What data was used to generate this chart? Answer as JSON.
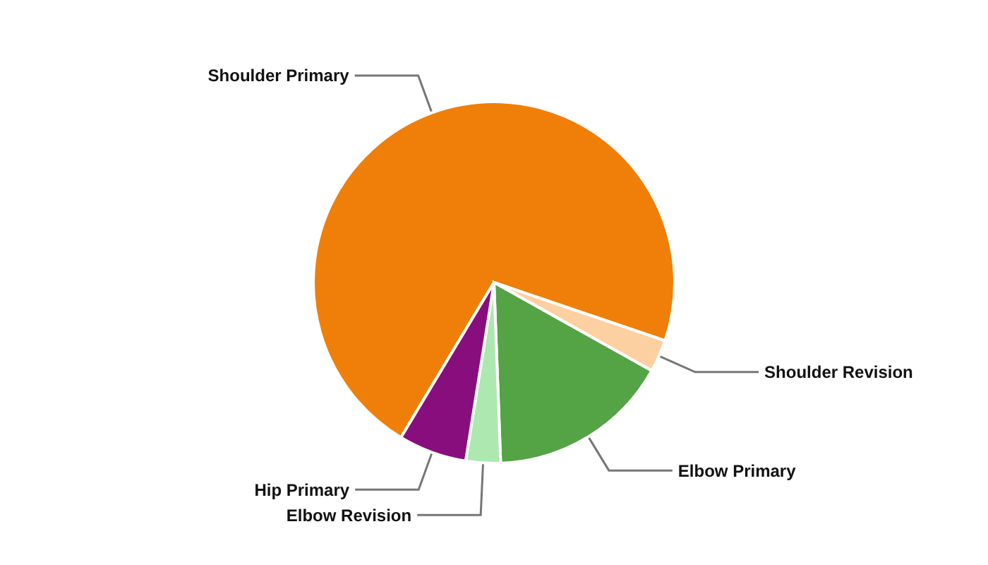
{
  "chart_data": {
    "type": "pie",
    "categories": [
      "Shoulder Primary",
      "Shoulder Revision",
      "Elbow Primary",
      "Elbow Revision",
      "Hip Primary"
    ],
    "values": [
      71.6,
      2.9,
      16.3,
      3.1,
      6.1
    ],
    "colors": [
      "#f07f09",
      "#fdd0a2",
      "#54a345",
      "#ade8b0",
      "#880e7e"
    ]
  }
}
